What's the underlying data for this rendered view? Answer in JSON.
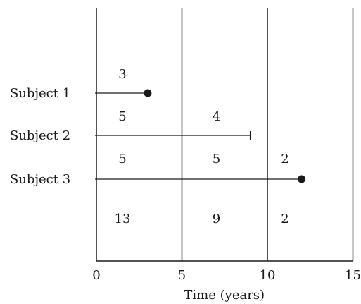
{
  "diagram": {
    "xlabel": "Time (years)",
    "ticks": [
      "0",
      "5",
      "10",
      "15"
    ],
    "boundaries": [
      0,
      5,
      10,
      15
    ],
    "subjects": [
      {
        "label": "Subject 1",
        "end": 3,
        "event": "death"
      },
      {
        "label": "Subject 2",
        "end": 9,
        "event": "censored"
      },
      {
        "label": "Subject 3",
        "end": 12,
        "event": "death"
      }
    ],
    "interval_counts": [
      [
        "3",
        "",
        ""
      ],
      [
        "5",
        "4",
        ""
      ],
      [
        "5",
        "5",
        "2"
      ]
    ],
    "totals": [
      "13",
      "9",
      "2"
    ],
    "colors": {
      "line": "#1a1a1a",
      "text": "#1a1a1a",
      "background": "#ffffff"
    }
  }
}
